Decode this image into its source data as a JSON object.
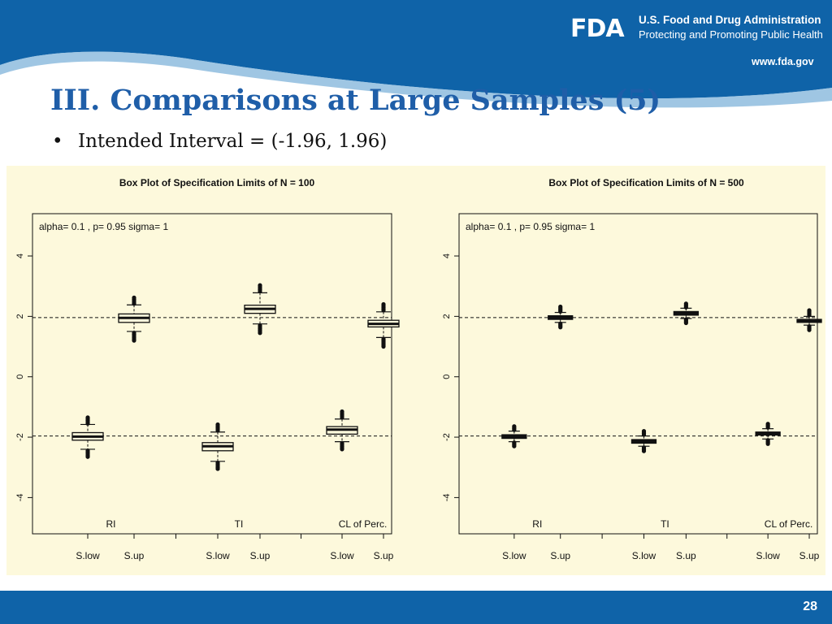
{
  "header": {
    "logo_text": "FDA",
    "agency_name": "U.S. Food and Drug Administration",
    "agency_tagline": "Protecting and Promoting Public Health",
    "site_url": "www.fda.gov"
  },
  "slide": {
    "title": "III. Comparisons at Large Samples (5)",
    "bullet": "Intended Interval = (-1.96, 1.96)",
    "page_number": "28"
  },
  "colors": {
    "brand_blue": "#0f63a8",
    "title_blue": "#1f5ea8",
    "plot_background": "#fdf9dc"
  },
  "chart_data": [
    {
      "type": "box",
      "title": "Box Plot of Specification Limits of N =  100",
      "annotation": "alpha= 0.1 , p= 0.95 sigma= 1",
      "ylim": [
        -5.2,
        5.4
      ],
      "yticks": [
        -4,
        -2,
        0,
        2,
        4
      ],
      "reference_lines": [
        -1.96,
        1.96
      ],
      "group_labels": [
        "RI",
        "TI",
        "CL of Perc."
      ],
      "categories": [
        "S.low",
        "S.up",
        "S.low",
        "S.up",
        "S.low",
        "S.up"
      ],
      "boxes": [
        {
          "category": "S.low",
          "group": "RI",
          "whisker_low": -2.4,
          "q1": -2.1,
          "median": -1.98,
          "q3": -1.85,
          "whisker_high": -1.58,
          "outliers_low": [
            -2.45,
            -2.5,
            -2.55,
            -2.6,
            -2.65
          ],
          "outliers_high": [
            -1.55,
            -1.5,
            -1.45,
            -1.4,
            -1.35
          ]
        },
        {
          "category": "S.up",
          "group": "RI",
          "whisker_low": 1.5,
          "q1": 1.8,
          "median": 1.95,
          "q3": 2.08,
          "whisker_high": 2.38,
          "outliers_low": [
            1.45,
            1.4,
            1.35,
            1.3,
            1.25,
            1.2
          ],
          "outliers_high": [
            2.42,
            2.47,
            2.52,
            2.57,
            2.62
          ]
        },
        {
          "category": "S.low",
          "group": "TI",
          "whisker_low": -2.8,
          "q1": -2.45,
          "median": -2.3,
          "q3": -2.18,
          "whisker_high": -1.83,
          "outliers_low": [
            -2.85,
            -2.9,
            -2.95,
            -3.0,
            -3.05
          ],
          "outliers_high": [
            -1.78,
            -1.73,
            -1.68,
            -1.63,
            -1.58
          ]
        },
        {
          "category": "S.up",
          "group": "TI",
          "whisker_low": 1.75,
          "q1": 2.1,
          "median": 2.25,
          "q3": 2.37,
          "whisker_high": 2.78,
          "outliers_low": [
            1.7,
            1.65,
            1.6,
            1.55,
            1.5,
            1.45
          ],
          "outliers_high": [
            2.83,
            2.88,
            2.93,
            2.98,
            3.03
          ]
        },
        {
          "category": "S.low",
          "group": "CL of Perc.",
          "whisker_low": -2.15,
          "q1": -1.9,
          "median": -1.75,
          "q3": -1.65,
          "whisker_high": -1.4,
          "outliers_low": [
            -2.2,
            -2.25,
            -2.3,
            -2.35,
            -2.4
          ],
          "outliers_high": [
            -1.35,
            -1.3,
            -1.25,
            -1.2,
            -1.15
          ]
        },
        {
          "category": "S.up",
          "group": "CL of Perc.",
          "whisker_low": 1.3,
          "q1": 1.65,
          "median": 1.75,
          "q3": 1.87,
          "whisker_high": 2.15,
          "outliers_low": [
            1.25,
            1.2,
            1.15,
            1.1,
            1.05,
            1.0
          ],
          "outliers_high": [
            2.2,
            2.25,
            2.3,
            2.35,
            2.4
          ]
        }
      ]
    },
    {
      "type": "box",
      "title": "Box Plot of Specification Limits of N =  500",
      "annotation": "alpha= 0.1 , p= 0.95 sigma= 1",
      "ylim": [
        -5.2,
        5.4
      ],
      "yticks": [
        -4,
        -2,
        0,
        2,
        4
      ],
      "reference_lines": [
        -1.96,
        1.96
      ],
      "group_labels": [
        "RI",
        "TI",
        "CL of Perc."
      ],
      "categories": [
        "S.low",
        "S.up",
        "S.low",
        "S.up",
        "S.low",
        "S.up"
      ],
      "boxes": [
        {
          "category": "S.low",
          "group": "RI",
          "whisker_low": -2.15,
          "q1": -2.04,
          "median": -1.98,
          "q3": -1.92,
          "whisker_high": -1.8,
          "outliers_low": [
            -2.18,
            -2.22,
            -2.26,
            -2.3
          ],
          "outliers_high": [
            -1.76,
            -1.72,
            -1.68,
            -1.64
          ]
        },
        {
          "category": "S.up",
          "group": "RI",
          "whisker_low": 1.8,
          "q1": 1.9,
          "median": 1.96,
          "q3": 2.02,
          "whisker_high": 2.13,
          "outliers_low": [
            1.76,
            1.72,
            1.68,
            1.64
          ],
          "outliers_high": [
            2.16,
            2.2,
            2.24,
            2.28,
            2.32
          ]
        },
        {
          "category": "S.low",
          "group": "TI",
          "whisker_low": -2.3,
          "q1": -2.2,
          "median": -2.14,
          "q3": -2.08,
          "whisker_high": -1.96,
          "outliers_low": [
            -2.34,
            -2.38,
            -2.42,
            -2.46
          ],
          "outliers_high": [
            -1.92,
            -1.88,
            -1.84,
            -1.8
          ]
        },
        {
          "category": "S.up",
          "group": "TI",
          "whisker_low": 1.93,
          "q1": 2.04,
          "median": 2.1,
          "q3": 2.16,
          "whisker_high": 2.27,
          "outliers_low": [
            1.9,
            1.86,
            1.82,
            1.78
          ],
          "outliers_high": [
            2.3,
            2.34,
            2.38,
            2.42
          ]
        },
        {
          "category": "S.low",
          "group": "CL of Perc.",
          "whisker_low": -2.06,
          "q1": -1.93,
          "median": -1.88,
          "q3": -1.83,
          "whisker_high": -1.72,
          "outliers_low": [
            -2.1,
            -2.14,
            -2.18,
            -2.22
          ],
          "outliers_high": [
            -1.68,
            -1.64,
            -1.6,
            -1.56
          ]
        },
        {
          "category": "S.up",
          "group": "CL of Perc.",
          "whisker_low": 1.71,
          "q1": 1.8,
          "median": 1.85,
          "q3": 1.9,
          "whisker_high": 2.0,
          "outliers_low": [
            1.67,
            1.63,
            1.59,
            1.55
          ],
          "outliers_high": [
            2.04,
            2.08,
            2.12,
            2.16,
            2.2
          ]
        }
      ]
    }
  ]
}
